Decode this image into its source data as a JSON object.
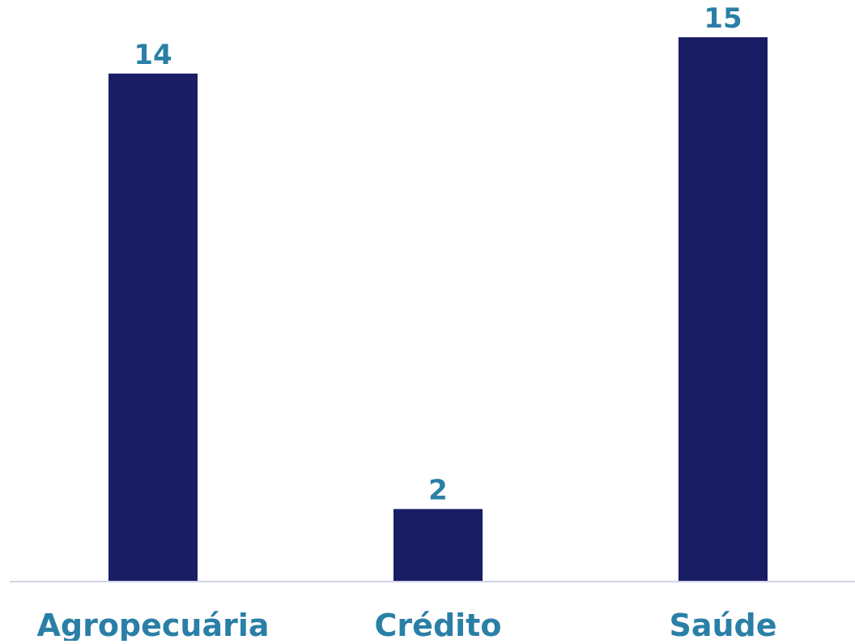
{
  "chart_data": {
    "type": "bar",
    "categories": [
      "Agropecuária",
      "Crédito",
      "Saúde"
    ],
    "values": [
      14,
      2,
      15
    ],
    "data_labels": [
      "14",
      "2",
      "15"
    ],
    "title": "",
    "xlabel": "",
    "ylabel": "",
    "ylim": [
      0,
      15
    ],
    "grid": false,
    "legend": "none",
    "colors": {
      "bar": "#191D63",
      "label": "#2A7FA6",
      "axis": "#D3D3EA",
      "background": "#FFFFFF"
    }
  }
}
